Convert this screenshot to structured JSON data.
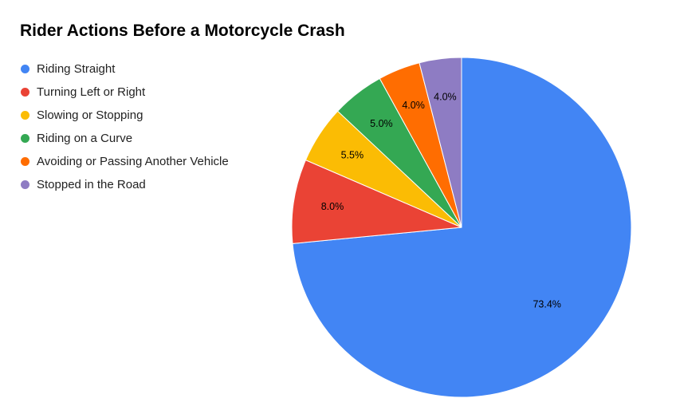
{
  "chart_data": {
    "type": "pie",
    "title": "Rider Actions Before a Motorcycle Crash",
    "legend_position": "left",
    "slices": [
      {
        "label": "Riding Straight",
        "value": 73.4,
        "display": "73.4%",
        "color": "#4285F4"
      },
      {
        "label": "Turning Left or Right",
        "value": 8.0,
        "display": "8.0%",
        "color": "#EA4335"
      },
      {
        "label": "Slowing or Stopping",
        "value": 5.5,
        "display": "5.5%",
        "color": "#FBBC04"
      },
      {
        "label": "Riding on a Curve",
        "value": 5.0,
        "display": "5.0%",
        "color": "#34A853"
      },
      {
        "label": "Avoiding or Passing Another Vehicle",
        "value": 4.0,
        "display": "4.0%",
        "color": "#FF6D01"
      },
      {
        "label": "Stopped in the Road",
        "value": 4.0,
        "display": "4.0%",
        "color": "#8E7CC3"
      }
    ]
  }
}
